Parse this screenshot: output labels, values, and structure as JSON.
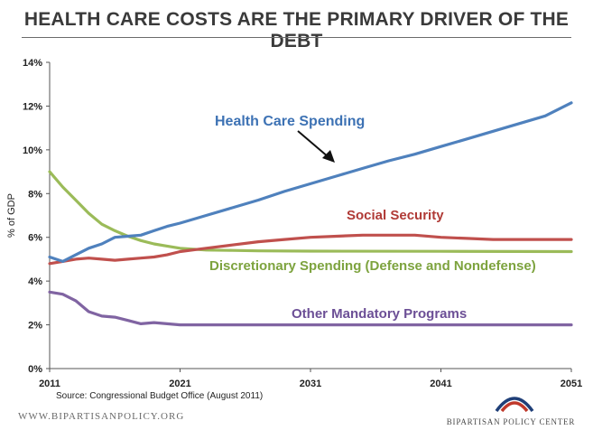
{
  "header": {
    "title": "HEALTH CARE COSTS ARE THE PRIMARY DRIVER OF THE DEBT"
  },
  "chart_data": {
    "type": "line",
    "ylabel": "% of GDP",
    "xlabel": "",
    "ylim": [
      0,
      14
    ],
    "xlim": [
      2011,
      2051
    ],
    "y_ticks": [
      0,
      2,
      4,
      6,
      8,
      10,
      12,
      14
    ],
    "y_tick_labels": [
      "0%",
      "2%",
      "4%",
      "6%",
      "8%",
      "10%",
      "12%",
      "14%"
    ],
    "x_ticks": [
      2011,
      2021,
      2031,
      2041,
      2051
    ],
    "x_tick_labels": [
      "2011",
      "2021",
      "2031",
      "2041",
      "2051"
    ],
    "grid": false,
    "series": [
      {
        "name": "Health Care Spending",
        "color": "#4f81bd",
        "points": [
          [
            2011,
            5.1
          ],
          [
            2012,
            4.9
          ],
          [
            2013,
            5.2
          ],
          [
            2014,
            5.5
          ],
          [
            2015,
            5.7
          ],
          [
            2016,
            6.0
          ],
          [
            2017,
            6.05
          ],
          [
            2018,
            6.1
          ],
          [
            2019,
            6.3
          ],
          [
            2020,
            6.5
          ],
          [
            2021,
            6.65
          ],
          [
            2023,
            7.0
          ],
          [
            2025,
            7.35
          ],
          [
            2027,
            7.7
          ],
          [
            2029,
            8.1
          ],
          [
            2031,
            8.45
          ],
          [
            2033,
            8.8
          ],
          [
            2035,
            9.15
          ],
          [
            2037,
            9.5
          ],
          [
            2039,
            9.8
          ],
          [
            2041,
            10.15
          ],
          [
            2043,
            10.5
          ],
          [
            2045,
            10.85
          ],
          [
            2047,
            11.2
          ],
          [
            2049,
            11.55
          ],
          [
            2051,
            12.15
          ]
        ]
      },
      {
        "name": "Social Security",
        "color": "#c0504d",
        "points": [
          [
            2011,
            4.8
          ],
          [
            2012,
            4.9
          ],
          [
            2013,
            5.0
          ],
          [
            2014,
            5.05
          ],
          [
            2015,
            5.0
          ],
          [
            2016,
            4.95
          ],
          [
            2017,
            5.0
          ],
          [
            2018,
            5.05
          ],
          [
            2019,
            5.1
          ],
          [
            2020,
            5.2
          ],
          [
            2021,
            5.35
          ],
          [
            2023,
            5.5
          ],
          [
            2025,
            5.65
          ],
          [
            2027,
            5.8
          ],
          [
            2029,
            5.9
          ],
          [
            2031,
            6.0
          ],
          [
            2033,
            6.05
          ],
          [
            2035,
            6.1
          ],
          [
            2037,
            6.1
          ],
          [
            2039,
            6.1
          ],
          [
            2041,
            6.0
          ],
          [
            2043,
            5.95
          ],
          [
            2045,
            5.9
          ],
          [
            2047,
            5.9
          ],
          [
            2049,
            5.9
          ],
          [
            2051,
            5.9
          ]
        ]
      },
      {
        "name": "Discretionary Spending (Defense and Nondefense)",
        "color": "#9bbb59",
        "points": [
          [
            2011,
            9.0
          ],
          [
            2012,
            8.3
          ],
          [
            2013,
            7.7
          ],
          [
            2014,
            7.1
          ],
          [
            2015,
            6.6
          ],
          [
            2016,
            6.3
          ],
          [
            2017,
            6.05
          ],
          [
            2018,
            5.85
          ],
          [
            2019,
            5.7
          ],
          [
            2020,
            5.6
          ],
          [
            2021,
            5.5
          ],
          [
            2023,
            5.42
          ],
          [
            2025,
            5.4
          ],
          [
            2027,
            5.38
          ],
          [
            2031,
            5.37
          ],
          [
            2041,
            5.36
          ],
          [
            2051,
            5.35
          ]
        ]
      },
      {
        "name": "Other Mandatory Programs",
        "color": "#8064a2",
        "points": [
          [
            2011,
            3.5
          ],
          [
            2012,
            3.4
          ],
          [
            2013,
            3.1
          ],
          [
            2014,
            2.6
          ],
          [
            2015,
            2.4
          ],
          [
            2016,
            2.35
          ],
          [
            2017,
            2.2
          ],
          [
            2018,
            2.05
          ],
          [
            2019,
            2.1
          ],
          [
            2020,
            2.05
          ],
          [
            2021,
            2.0
          ],
          [
            2031,
            2.0
          ],
          [
            2041,
            2.0
          ],
          [
            2051,
            2.0
          ]
        ]
      }
    ],
    "annotations": [
      {
        "text": "Health Care Spending",
        "color": "#3d72b4"
      },
      {
        "text": "Social Security",
        "color": "#b03a36"
      },
      {
        "text": "Discretionary Spending (Defense and Nondefense)",
        "color": "#7da33e"
      },
      {
        "text": "Other Mandatory Programs",
        "color": "#6c4f96"
      }
    ]
  },
  "footer": {
    "source": "Source: Congressional Budget Office (August 2011)",
    "website": "WWW.BIPARTISANPOLICY.ORG",
    "organization": "BIPARTISAN POLICY CENTER",
    "logo_colors": [
      "#1f3f78",
      "#c0392b"
    ]
  }
}
